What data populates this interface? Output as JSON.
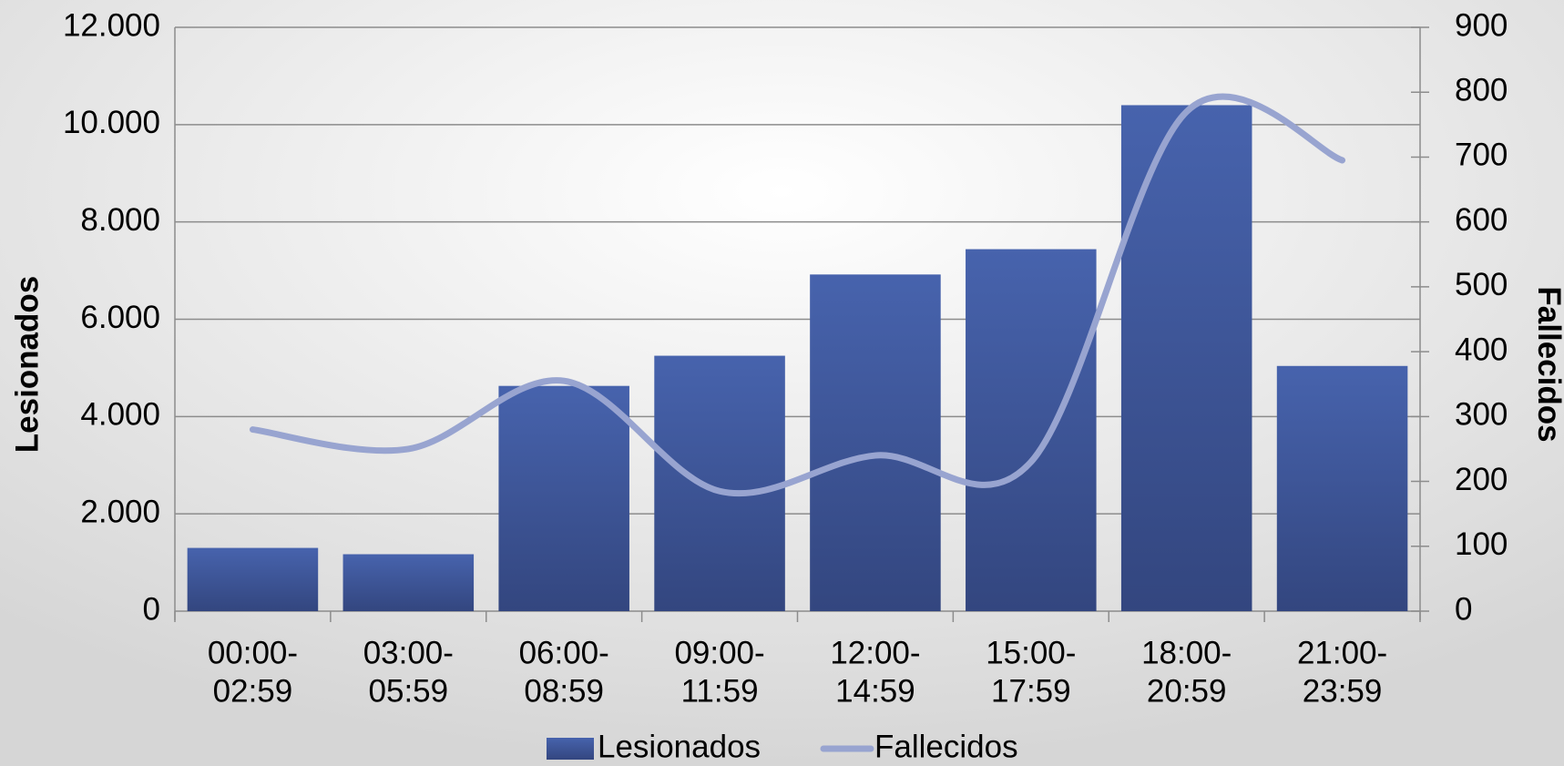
{
  "chart_data": {
    "type": "bar",
    "categories": [
      [
        "00:00-",
        "02:59"
      ],
      [
        "03:00-",
        "05:59"
      ],
      [
        "06:00-",
        "08:59"
      ],
      [
        "09:00-",
        "11:59"
      ],
      [
        "12:00-",
        "14:59"
      ],
      [
        "15:00-",
        "17:59"
      ],
      [
        "18:00-",
        "20:59"
      ],
      [
        "21:00-",
        "23:59"
      ]
    ],
    "series": [
      {
        "name": "Lesionados",
        "type": "bar",
        "color": "#3e5599",
        "values": [
          1300,
          1170,
          4630,
          5250,
          6920,
          7440,
          10400,
          5040
        ]
      },
      {
        "name": "Fallecidos",
        "type": "line",
        "axis": "y2",
        "color": "#98a4d0",
        "values": [
          280,
          250,
          355,
          185,
          240,
          230,
          770,
          695
        ]
      }
    ],
    "y_label": "Lesionados",
    "y2_label": "Fallecidos",
    "ylim": [
      0,
      12000
    ],
    "yticks": [
      0,
      {
        "value": 2000,
        "label": "2.000"
      },
      {
        "value": 4000,
        "label": "4.000"
      },
      {
        "value": 6000,
        "label": "6.000"
      },
      {
        "value": 8000,
        "label": "8.000"
      },
      {
        "value": 10000,
        "label": "10.000"
      },
      {
        "value": 12000,
        "label": "12.000"
      }
    ],
    "y2lim": [
      0,
      900
    ],
    "y2ticks": [
      0,
      100,
      200,
      300,
      400,
      500,
      600,
      700,
      800,
      900
    ],
    "grid": true,
    "legend": "bottom"
  }
}
